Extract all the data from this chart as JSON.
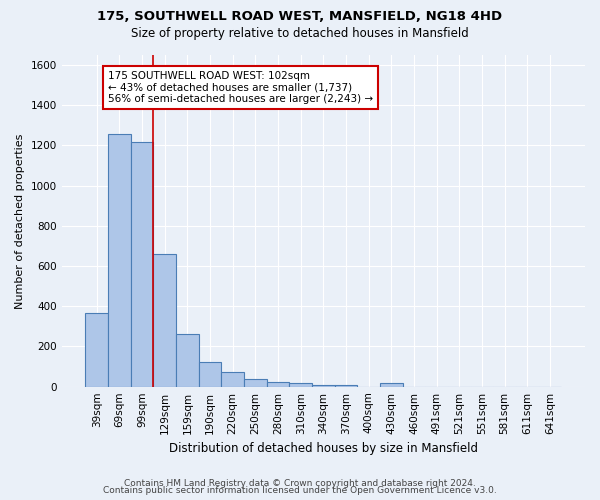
{
  "title1": "175, SOUTHWELL ROAD WEST, MANSFIELD, NG18 4HD",
  "title2": "Size of property relative to detached houses in Mansfield",
  "xlabel": "Distribution of detached houses by size in Mansfield",
  "ylabel": "Number of detached properties",
  "footer1": "Contains HM Land Registry data © Crown copyright and database right 2024.",
  "footer2": "Contains public sector information licensed under the Open Government Licence v3.0.",
  "bar_labels": [
    "39sqm",
    "69sqm",
    "99sqm",
    "129sqm",
    "159sqm",
    "190sqm",
    "220sqm",
    "250sqm",
    "280sqm",
    "310sqm",
    "340sqm",
    "370sqm",
    "400sqm",
    "430sqm",
    "460sqm",
    "491sqm",
    "521sqm",
    "551sqm",
    "581sqm",
    "611sqm",
    "641sqm"
  ],
  "bar_values": [
    365,
    1255,
    1215,
    660,
    260,
    125,
    72,
    37,
    25,
    16,
    10,
    7,
    0,
    18,
    0,
    0,
    0,
    0,
    0,
    0,
    0
  ],
  "bar_color": "#aec6e8",
  "bar_edge_color": "#4a7db5",
  "background_color": "#eaf0f8",
  "grid_color": "#ffffff",
  "red_line_x": 2.5,
  "annotation_text": "175 SOUTHWELL ROAD WEST: 102sqm\n← 43% of detached houses are smaller (1,737)\n56% of semi-detached houses are larger (2,243) →",
  "annotation_box_color": "#ffffff",
  "annotation_box_edge": "#cc0000",
  "ylim": [
    0,
    1650
  ],
  "yticks": [
    0,
    200,
    400,
    600,
    800,
    1000,
    1200,
    1400,
    1600
  ]
}
